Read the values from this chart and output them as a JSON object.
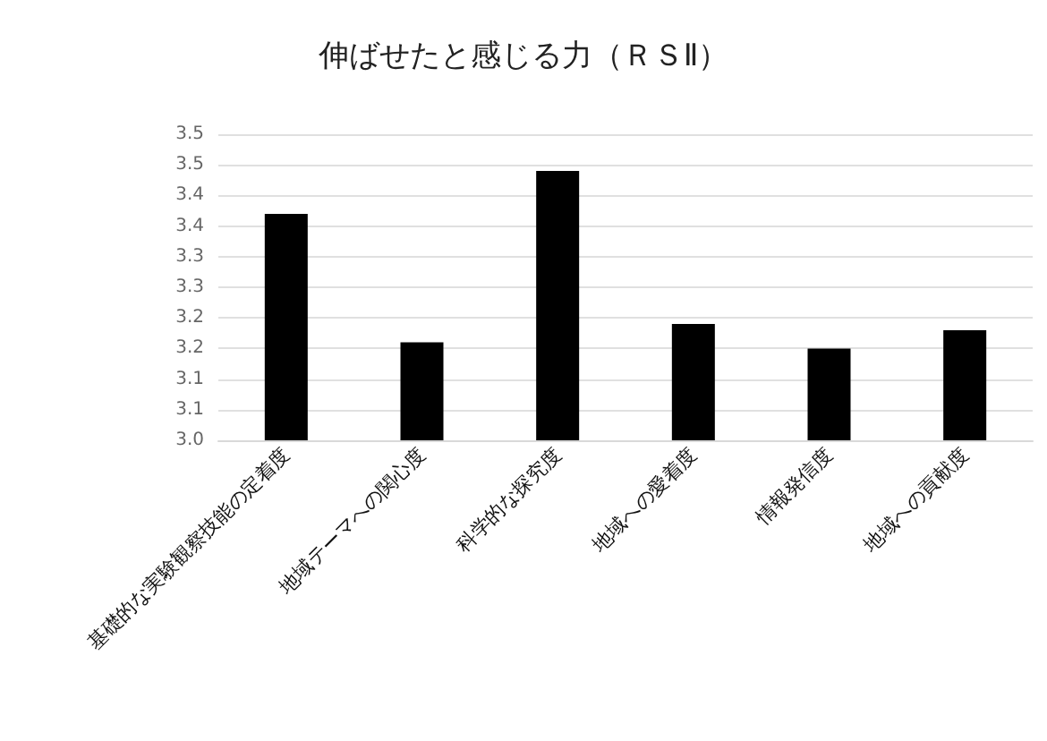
{
  "chart_data": {
    "type": "bar",
    "title": "伸ばせたと感じる力（ＲＳⅡ）",
    "categories": [
      "基礎的な実験観察技能の定着度",
      "地域テーマへの関心度",
      "科学的な探究度",
      "地域への愛着度",
      "情報発信度",
      "地域への貢献度"
    ],
    "values": [
      3.37,
      3.16,
      3.44,
      3.19,
      3.15,
      3.18
    ],
    "color": "#000000",
    "ylim": [
      3.0,
      3.5
    ],
    "yticks": [
      {
        "value": 3.0,
        "label": "3.0"
      },
      {
        "value": 3.05,
        "label": "3.1"
      },
      {
        "value": 3.1,
        "label": "3.1"
      },
      {
        "value": 3.15,
        "label": "3.2"
      },
      {
        "value": 3.2,
        "label": "3.2"
      },
      {
        "value": 3.25,
        "label": "3.3"
      },
      {
        "value": 3.3,
        "label": "3.3"
      },
      {
        "value": 3.35,
        "label": "3.4"
      },
      {
        "value": 3.4,
        "label": "3.4"
      },
      {
        "value": 3.45,
        "label": "3.5"
      },
      {
        "value": 3.5,
        "label": "3.5"
      }
    ],
    "grid": true
  }
}
